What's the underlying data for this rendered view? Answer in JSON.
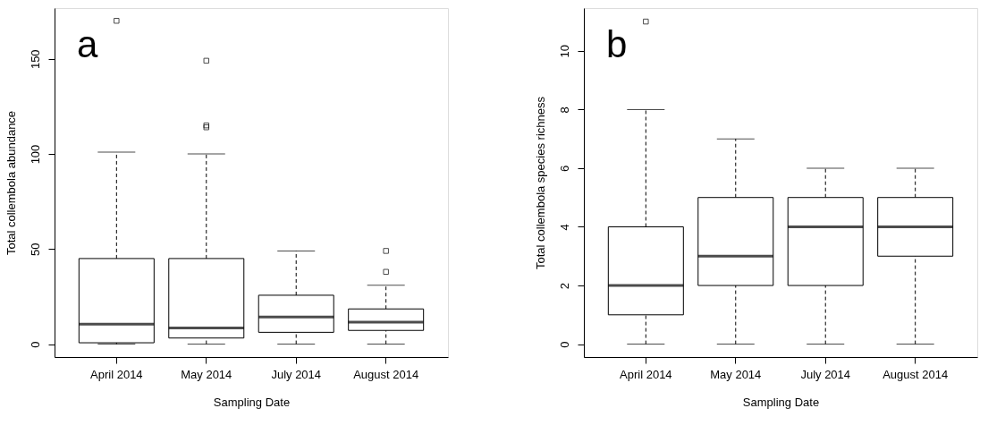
{
  "chart_data": [
    {
      "type": "box",
      "xlabel": "Sampling Date",
      "ylabel": "Total collembola abundance",
      "annotations": [
        "a"
      ],
      "categories": [
        "April 2014",
        "May 2014",
        "July 2014",
        "August 2014"
      ],
      "boxes": [
        {
          "low": 0,
          "q1": 0.7,
          "median": 10.5,
          "q3": 45,
          "high": 101,
          "outliers": [
            170
          ]
        },
        {
          "low": 0,
          "q1": 3.2,
          "median": 8.5,
          "q3": 45,
          "high": 100,
          "outliers": [
            149,
            115,
            114
          ]
        },
        {
          "low": 0,
          "q1": 6.2,
          "median": 14.3,
          "q3": 25.7,
          "high": 49
        },
        {
          "low": 0,
          "q1": 7.2,
          "median": 11.5,
          "q3": 18.5,
          "high": 31,
          "outliers": [
            49,
            38
          ]
        }
      ],
      "ylim": [
        -6.8,
        176.7
      ],
      "yticks": [
        0,
        50,
        100,
        150
      ],
      "grid": false
    },
    {
      "type": "box",
      "xlabel": "Sampling Date",
      "ylabel": "Total collembola species richness",
      "annotations": [
        "b"
      ],
      "categories": [
        "April 2014",
        "May 2014",
        "July 2014",
        "August 2014"
      ],
      "boxes": [
        {
          "low": 0,
          "q1": 1,
          "median": 2,
          "q3": 4,
          "high": 8,
          "outliers": [
            11
          ]
        },
        {
          "low": 0,
          "q1": 2,
          "median": 3,
          "q3": 5,
          "high": 7
        },
        {
          "low": 0,
          "q1": 2,
          "median": 4,
          "q3": 5,
          "high": 6
        },
        {
          "low": 0,
          "q1": 3,
          "median": 4,
          "q3": 5,
          "high": 6
        }
      ],
      "ylim": [
        -0.44,
        11.46
      ],
      "yticks": [
        0,
        2,
        4,
        6,
        8,
        10
      ],
      "grid": false
    }
  ]
}
